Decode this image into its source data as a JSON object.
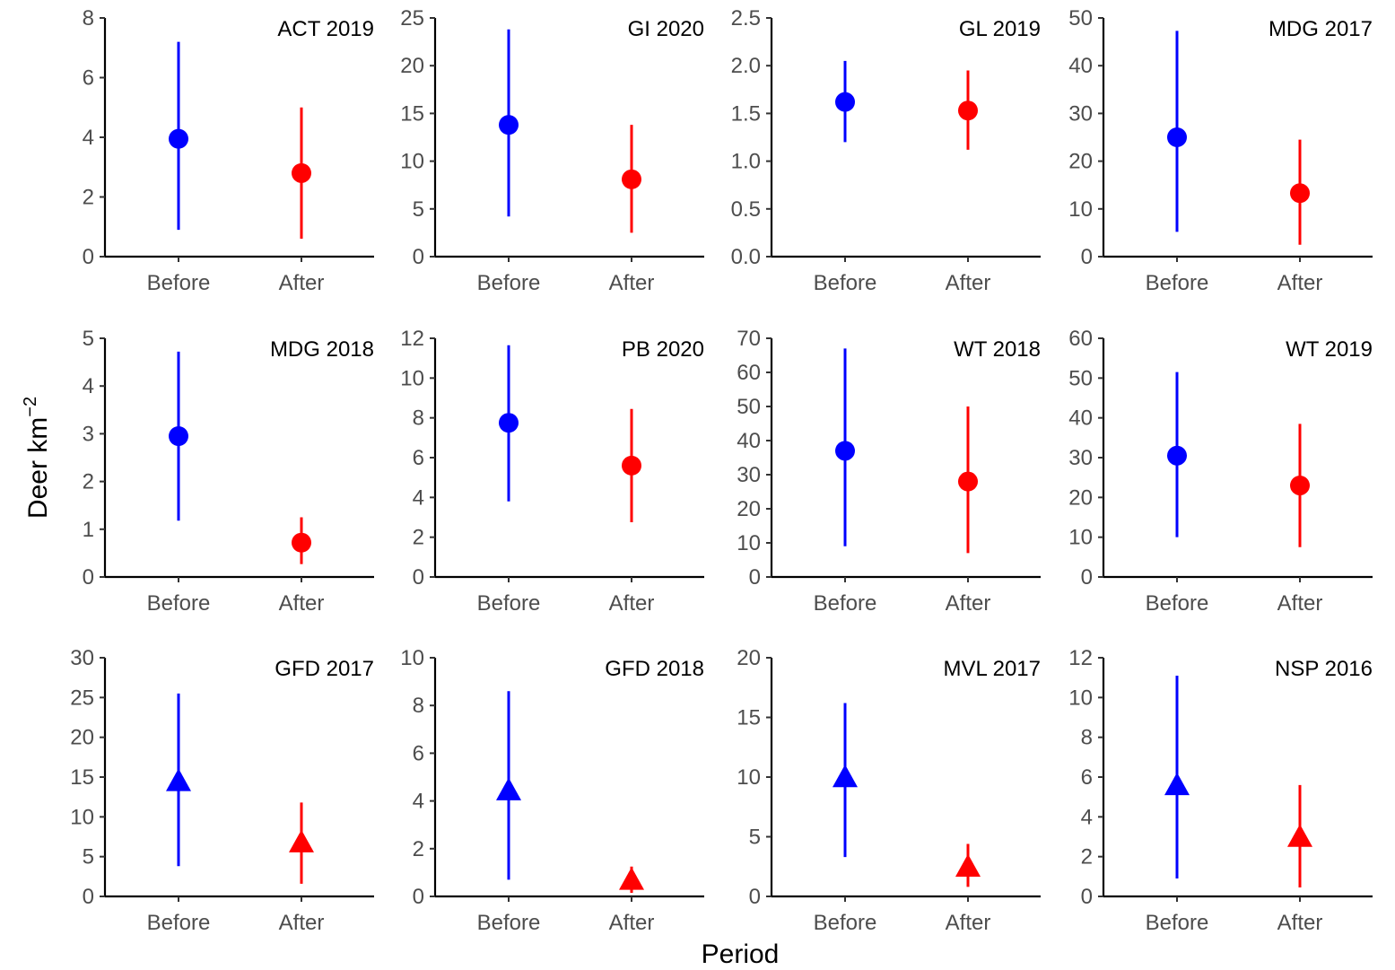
{
  "figure": {
    "ylabel_main": "Deer km",
    "ylabel_sup": "−2",
    "xlabel": "Period"
  },
  "chart_data": {
    "type": "scatter",
    "description_of_encoding": "point = estimate, vertical line = interval; circle markers rows 1-2, triangle markers row 3",
    "categories": [
      "Before",
      "After"
    ],
    "colors": {
      "Before": "#0000ff",
      "After": "#ff0000"
    },
    "grid": false,
    "panels": [
      {
        "title": "ACT 2019",
        "marker": "circle",
        "ylim": [
          0,
          8
        ],
        "yticks": [
          "0",
          "2",
          "4",
          "6",
          "8"
        ],
        "tickvals": [
          0,
          2,
          4,
          6,
          8
        ],
        "points": [
          {
            "x": "Before",
            "y": 3.95,
            "lo": 0.9,
            "hi": 7.2
          },
          {
            "x": "After",
            "y": 2.8,
            "lo": 0.6,
            "hi": 5.0
          }
        ]
      },
      {
        "title": "GI 2020",
        "marker": "circle",
        "ylim": [
          0,
          25
        ],
        "yticks": [
          "0",
          "5",
          "10",
          "15",
          "20",
          "25"
        ],
        "tickvals": [
          0,
          5,
          10,
          15,
          20,
          25
        ],
        "points": [
          {
            "x": "Before",
            "y": 13.8,
            "lo": 4.2,
            "hi": 23.8
          },
          {
            "x": "After",
            "y": 8.1,
            "lo": 2.5,
            "hi": 13.8
          }
        ]
      },
      {
        "title": "GL 2019",
        "marker": "circle",
        "ylim": [
          0,
          2.5
        ],
        "yticks": [
          "0.0",
          "0.5",
          "1.0",
          "1.5",
          "2.0",
          "2.5"
        ],
        "tickvals": [
          0,
          0.5,
          1.0,
          1.5,
          2.0,
          2.5
        ],
        "points": [
          {
            "x": "Before",
            "y": 1.62,
            "lo": 1.2,
            "hi": 2.05
          },
          {
            "x": "After",
            "y": 1.53,
            "lo": 1.12,
            "hi": 1.95
          }
        ]
      },
      {
        "title": "MDG 2017",
        "marker": "circle",
        "ylim": [
          0,
          50
        ],
        "yticks": [
          "0",
          "10",
          "20",
          "30",
          "40",
          "50"
        ],
        "tickvals": [
          0,
          10,
          20,
          30,
          40,
          50
        ],
        "points": [
          {
            "x": "Before",
            "y": 25.0,
            "lo": 5.2,
            "hi": 47.3
          },
          {
            "x": "After",
            "y": 13.3,
            "lo": 2.5,
            "hi": 24.5
          }
        ]
      },
      {
        "title": "MDG 2018",
        "marker": "circle",
        "ylim": [
          0,
          5
        ],
        "yticks": [
          "0",
          "1",
          "2",
          "3",
          "4",
          "5"
        ],
        "tickvals": [
          0,
          1,
          2,
          3,
          4,
          5
        ],
        "points": [
          {
            "x": "Before",
            "y": 2.95,
            "lo": 1.18,
            "hi": 4.72
          },
          {
            "x": "After",
            "y": 0.72,
            "lo": 0.27,
            "hi": 1.25
          }
        ]
      },
      {
        "title": "PB 2020",
        "marker": "circle",
        "ylim": [
          0,
          12
        ],
        "yticks": [
          "0",
          "2",
          "4",
          "6",
          "8",
          "10",
          "12"
        ],
        "tickvals": [
          0,
          2,
          4,
          6,
          8,
          10,
          12
        ],
        "points": [
          {
            "x": "Before",
            "y": 7.75,
            "lo": 3.8,
            "hi": 11.65
          },
          {
            "x": "After",
            "y": 5.6,
            "lo": 2.75,
            "hi": 8.45
          }
        ]
      },
      {
        "title": "WT 2018",
        "marker": "circle",
        "ylim": [
          0,
          70
        ],
        "yticks": [
          "0",
          "10",
          "20",
          "30",
          "40",
          "50",
          "60",
          "70"
        ],
        "tickvals": [
          0,
          10,
          20,
          30,
          40,
          50,
          60,
          70
        ],
        "points": [
          {
            "x": "Before",
            "y": 37.0,
            "lo": 9.0,
            "hi": 67.0
          },
          {
            "x": "After",
            "y": 28.0,
            "lo": 7.0,
            "hi": 50.0
          }
        ]
      },
      {
        "title": "WT 2019",
        "marker": "circle",
        "ylim": [
          0,
          60
        ],
        "yticks": [
          "0",
          "10",
          "20",
          "30",
          "40",
          "50",
          "60"
        ],
        "tickvals": [
          0,
          10,
          20,
          30,
          40,
          50,
          60
        ],
        "points": [
          {
            "x": "Before",
            "y": 30.5,
            "lo": 10.0,
            "hi": 51.5
          },
          {
            "x": "After",
            "y": 23.0,
            "lo": 7.5,
            "hi": 38.5
          }
        ]
      },
      {
        "title": "GFD 2017",
        "marker": "triangle",
        "ylim": [
          0,
          30
        ],
        "yticks": [
          "0",
          "5",
          "10",
          "15",
          "20",
          "25",
          "30"
        ],
        "tickvals": [
          0,
          5,
          10,
          15,
          20,
          25,
          30
        ],
        "points": [
          {
            "x": "Before",
            "y": 14.5,
            "lo": 3.8,
            "hi": 25.5
          },
          {
            "x": "After",
            "y": 6.8,
            "lo": 1.6,
            "hi": 11.8
          }
        ]
      },
      {
        "title": "GFD 2018",
        "marker": "triangle",
        "ylim": [
          0,
          10
        ],
        "yticks": [
          "0",
          "2",
          "4",
          "6",
          "8",
          "10"
        ],
        "tickvals": [
          0,
          2,
          4,
          6,
          8,
          10
        ],
        "points": [
          {
            "x": "Before",
            "y": 4.45,
            "lo": 0.7,
            "hi": 8.6
          },
          {
            "x": "After",
            "y": 0.7,
            "lo": 0.15,
            "hi": 1.25
          }
        ]
      },
      {
        "title": "MVL 2017",
        "marker": "triangle",
        "ylim": [
          0,
          20
        ],
        "yticks": [
          "0",
          "5",
          "10",
          "15",
          "20"
        ],
        "tickvals": [
          0,
          5,
          10,
          15,
          20
        ],
        "points": [
          {
            "x": "Before",
            "y": 10.0,
            "lo": 3.3,
            "hi": 16.2
          },
          {
            "x": "After",
            "y": 2.5,
            "lo": 0.8,
            "hi": 4.4
          }
        ]
      },
      {
        "title": "NSP 2016",
        "marker": "triangle",
        "ylim": [
          0,
          12
        ],
        "yticks": [
          "0",
          "2",
          "4",
          "6",
          "8",
          "10",
          "12"
        ],
        "tickvals": [
          0,
          2,
          4,
          6,
          8,
          10,
          12
        ],
        "points": [
          {
            "x": "Before",
            "y": 5.6,
            "lo": 0.9,
            "hi": 11.1
          },
          {
            "x": "After",
            "y": 3.0,
            "lo": 0.45,
            "hi": 5.6
          }
        ]
      }
    ]
  }
}
